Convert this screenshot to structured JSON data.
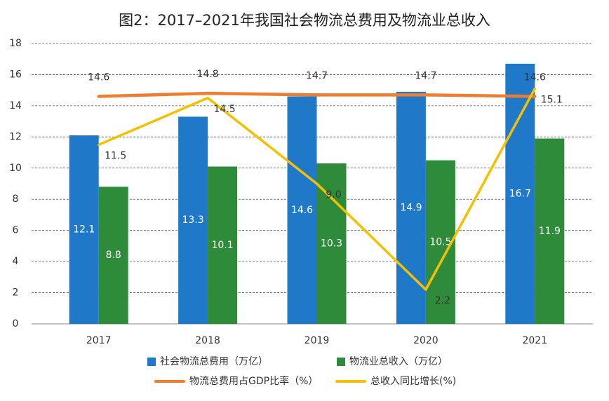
{
  "chart_data": {
    "type": "combo",
    "title": "图2：2017–2021年我国社会物流总费用及物流业总收入",
    "categories": [
      "2017",
      "2018",
      "2019",
      "2020",
      "2021"
    ],
    "ylim": [
      0,
      18
    ],
    "yticks": [
      0,
      2,
      4,
      6,
      8,
      10,
      12,
      14,
      16,
      18
    ],
    "grid": true,
    "series": [
      {
        "name": "社会物流总费用（万亿）",
        "type": "bar",
        "color": "#1f78c8",
        "values": [
          12.1,
          13.3,
          14.6,
          14.9,
          16.7
        ]
      },
      {
        "name": "物流业总收入（万亿）",
        "type": "bar",
        "color": "#2e8b3a",
        "values": [
          8.8,
          10.1,
          10.3,
          10.5,
          11.9
        ]
      },
      {
        "name": "物流总费用占GDP比率（%）",
        "type": "line",
        "color": "#ed7d31",
        "values": [
          14.6,
          14.8,
          14.7,
          14.7,
          14.6
        ]
      },
      {
        "name": "总收入同比增长(%)",
        "type": "line",
        "color": "#f5c000",
        "values": [
          11.5,
          14.5,
          9,
          2.2,
          15.1
        ],
        "value_labels": [
          "11.5",
          "14.5",
          "9.0",
          "2.2",
          "15.1"
        ]
      }
    ]
  }
}
